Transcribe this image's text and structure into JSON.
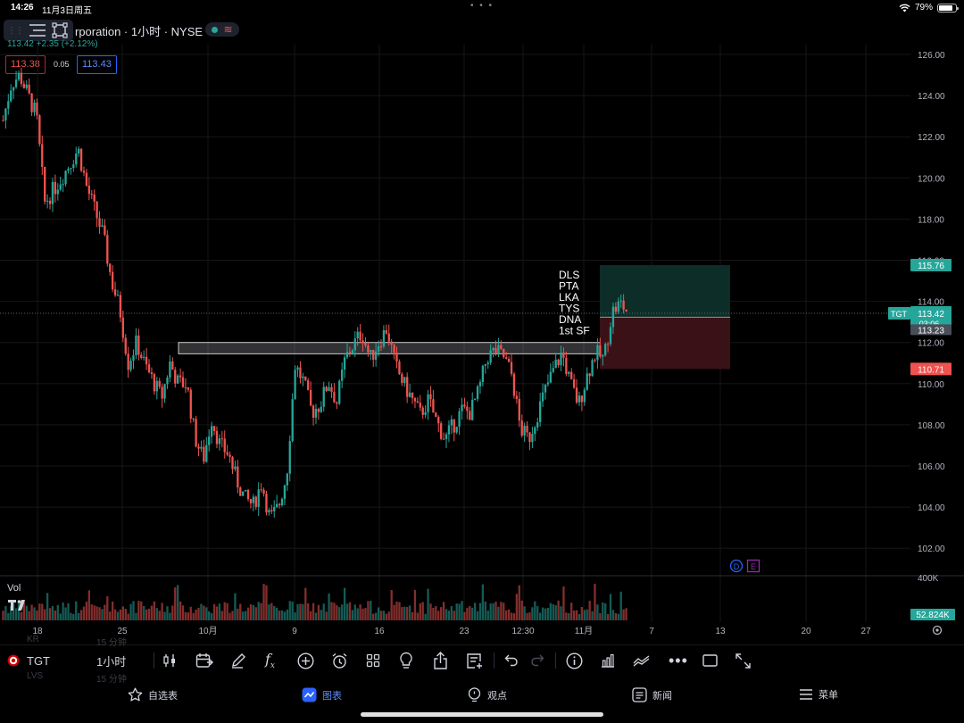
{
  "status_bar": {
    "time": "14:26",
    "date": "11月3日周五",
    "battery": "79%",
    "dots": "• • •"
  },
  "header": {
    "title": "rporation · 1小时 · NYSE",
    "change": "113.42  +2.35 (+2.12%)",
    "bid": "113.38",
    "spread": "0.05",
    "ask": "113.43"
  },
  "chart_data": {
    "type": "candlestick",
    "symbol": "TGT",
    "ylim": [
      101,
      127
    ],
    "y_ticks": [
      "126.00",
      "124.00",
      "122.00",
      "120.00",
      "118.00",
      "116.00",
      "114.00",
      "112.00",
      "110.00",
      "108.00",
      "106.00",
      "104.00",
      "102.00"
    ],
    "x_ticks": [
      "18",
      "25",
      "10月",
      "9",
      "16",
      "23",
      "12:30",
      "11月",
      "7",
      "13",
      "20",
      "27"
    ],
    "volume_label": "Vol",
    "volume_axis_label": "400K",
    "volume_current": "52.824K",
    "current_price": "113.42",
    "countdown": "03:06",
    "symbol_tag": "TGT",
    "position_labels": {
      "target": "115.76",
      "entry": "113.23",
      "stop": "110.71"
    },
    "notes": [
      "DLS",
      "PTA",
      "LKA",
      "TYS",
      "DNA",
      "1st SF"
    ],
    "markers": [
      "D",
      "E"
    ],
    "colors": {
      "up": "#26a69a",
      "down": "#ef5350",
      "grid": "#161616",
      "profit_zone": "#0d2d28",
      "loss_zone": "#3a1116"
    },
    "series_path": [
      [
        0,
        122.8
      ],
      [
        1,
        124.6
      ],
      [
        2,
        125.0
      ],
      [
        4,
        123.0
      ],
      [
        5,
        118.8
      ],
      [
        7,
        120.0
      ],
      [
        9,
        121.4
      ],
      [
        10,
        119.6
      ],
      [
        12,
        117.2
      ],
      [
        13,
        115.0
      ],
      [
        14,
        113.6
      ],
      [
        15,
        111.0
      ],
      [
        16,
        112.0
      ],
      [
        17,
        110.9
      ],
      [
        19,
        109.3
      ],
      [
        20,
        111.0
      ],
      [
        21,
        110.0
      ],
      [
        22,
        110.0
      ],
      [
        23,
        107.4
      ],
      [
        24,
        106.3
      ],
      [
        25,
        108.3
      ],
      [
        26,
        107.0
      ],
      [
        27,
        106.6
      ],
      [
        28,
        105.3
      ],
      [
        29,
        104.4
      ],
      [
        30,
        104.1
      ],
      [
        31,
        105.2
      ],
      [
        32,
        103.4
      ],
      [
        33,
        104.0
      ],
      [
        34,
        105.6
      ],
      [
        35,
        110.9
      ],
      [
        36,
        110.1
      ],
      [
        37,
        108.6
      ],
      [
        38,
        109.0
      ],
      [
        39,
        110.1
      ],
      [
        40,
        109.1
      ],
      [
        41,
        111.2
      ],
      [
        42,
        111.9
      ],
      [
        43,
        112.5
      ],
      [
        44,
        111.2
      ],
      [
        45,
        112.0
      ],
      [
        46,
        112.7
      ],
      [
        47,
        110.9
      ],
      [
        48,
        110.0
      ],
      [
        50,
        108.5
      ],
      [
        51,
        109.2
      ],
      [
        52,
        108.1
      ],
      [
        53,
        107.3
      ],
      [
        54,
        108.0
      ],
      [
        55,
        108.7
      ],
      [
        56,
        108.6
      ],
      [
        57,
        109.6
      ],
      [
        58,
        111.3
      ],
      [
        59,
        111.6
      ],
      [
        60,
        111.3
      ],
      [
        61,
        110.4
      ],
      [
        62,
        107.8
      ],
      [
        63,
        107.3
      ],
      [
        64,
        108.5
      ],
      [
        65,
        109.7
      ],
      [
        66,
        110.7
      ],
      [
        67,
        111.5
      ],
      [
        68,
        110.0
      ],
      [
        69,
        109.0
      ],
      [
        70,
        110.4
      ],
      [
        71,
        111.5
      ],
      [
        72,
        111.2
      ],
      [
        73,
        113.5
      ],
      [
        74,
        113.9
      ],
      [
        75,
        113.4
      ]
    ]
  },
  "toolbar": {
    "symbol": "TGT",
    "interval": "1小时",
    "ghost_top_left": "KR",
    "ghost_top_mid": "15 分钟",
    "ghost_bottom_left": "LVS",
    "ghost_bottom_mid": "15 分钟"
  },
  "nav": {
    "items": [
      "自选表",
      "图表",
      "观点",
      "新闻",
      "菜单"
    ],
    "active": "图表"
  }
}
